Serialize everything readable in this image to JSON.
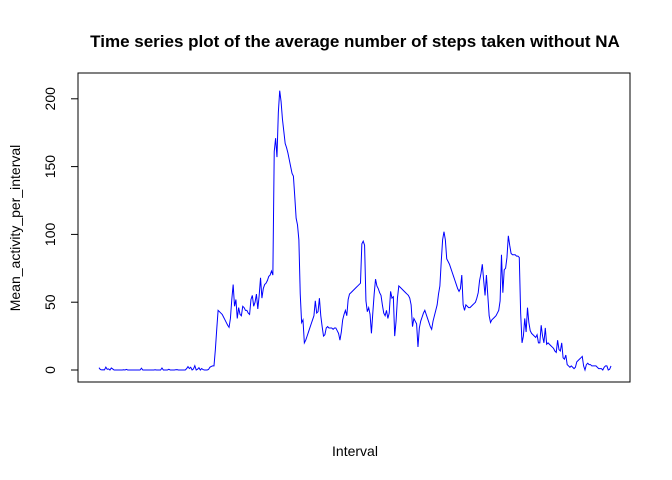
{
  "chart_data": {
    "type": "line",
    "title": "Time series plot of the average number of steps taken without NA",
    "xlabel": "Interval",
    "ylabel": "Mean_activity_per_interval",
    "ylim": [
      0,
      206
    ],
    "y_ticks": [
      "0",
      "50",
      "100",
      "150",
      "200"
    ],
    "x_ticks": [],
    "grid": false,
    "series_color": "#0000ff",
    "series": [
      {
        "values": [
          1.7,
          0.3,
          0.1,
          0.2,
          0.1,
          2.1,
          0.5,
          0.8,
          0.0,
          1.5,
          0.8,
          0.0,
          0.0,
          0.0,
          0.0,
          0.0,
          0.0,
          0.0,
          0.2,
          0.0,
          0.4,
          0.0,
          0.0,
          0.0,
          0.0,
          0.0,
          0.0,
          0.0,
          0.0,
          0.0,
          0.0,
          1.3,
          0.0,
          0.0,
          0.0,
          0.0,
          0.0,
          0.0,
          0.0,
          0.0,
          0.0,
          0.2,
          0.0,
          0.0,
          0.0,
          0.0,
          1.5,
          0.0,
          0.0,
          0.0,
          0.0,
          0.5,
          0.0,
          0.0,
          0.0,
          0.0,
          0.2,
          0.3,
          0.0,
          0.0,
          0.0,
          0.0,
          0.0,
          0.0,
          1.0,
          2.5,
          1.1,
          2.0,
          0.0,
          0.8,
          3.2,
          0.0,
          0.6,
          1.7,
          0.0,
          1.1,
          0.3,
          0.0,
          0.0,
          0.0,
          0.4,
          2.0,
          2.6,
          3.0,
          3.0,
          15.0,
          30.0,
          44.0,
          43.0,
          42.0,
          41.0,
          39.0,
          37.0,
          35.0,
          33.0,
          31.5,
          38.0,
          52.0,
          63.0,
          47.0,
          52.0,
          38.0,
          46.0,
          41.0,
          40.0,
          47.0,
          46.0,
          44.0,
          44.0,
          42.0,
          41.0,
          52.0,
          55.0,
          47.0,
          50.0,
          56.0,
          45.0,
          55.0,
          68.0,
          53.0,
          60.0,
          63.0,
          64.0,
          66.0,
          69.0,
          70.0,
          73.0,
          70.0,
          161.0,
          171.0,
          157.0,
          190.0,
          206.0,
          198.0,
          185.0,
          176.0,
          167.0,
          164.0,
          160.0,
          155.0,
          150.0,
          145.0,
          143.0,
          128.0,
          112.0,
          107.0,
          96.0,
          56.0,
          35.0,
          37.0,
          20.0,
          22.0,
          25.0,
          28.0,
          31.0,
          34.0,
          37.0,
          40.0,
          51.0,
          42.0,
          43.0,
          53.0,
          40.0,
          32.0,
          25.0,
          26.0,
          31.0,
          32.0,
          31.0,
          31.0,
          31.0,
          30.0,
          31.0,
          31.0,
          29.0,
          27.0,
          22.0,
          28.0,
          37.0,
          41.0,
          44.0,
          40.0,
          52.0,
          56.0,
          57.0,
          58.0,
          59.0,
          60.0,
          61.0,
          62.0,
          63.0,
          64.0,
          93.0,
          95.0,
          92.0,
          51.0,
          43.0,
          46.0,
          41.0,
          27.0,
          42.0,
          56.0,
          67.0,
          62.0,
          60.0,
          57.0,
          55.0,
          48.0,
          42.0,
          40.0,
          44.0,
          38.0,
          42.0,
          58.0,
          53.0,
          54.0,
          25.0,
          36.0,
          53.0,
          62.0,
          61.0,
          60.0,
          59.0,
          58.0,
          57.0,
          56.0,
          55.0,
          53.0,
          48.0,
          32.0,
          38.0,
          36.0,
          34.0,
          17.0,
          31.0,
          36.0,
          39.0,
          42.0,
          44.0,
          41.0,
          38.0,
          35.0,
          32.0,
          30.0,
          36.0,
          40.0,
          44.0,
          48.0,
          56.0,
          62.0,
          80.0,
          96.0,
          102.0,
          96.0,
          82.0,
          80.0,
          78.0,
          75.0,
          72.0,
          69.0,
          66.0,
          63.0,
          60.0,
          58.0,
          60.0,
          70.0,
          48.0,
          44.0,
          48.0,
          47.0,
          46.0,
          46.0,
          47.0,
          48.0,
          49.0,
          50.0,
          53.0,
          57.0,
          66.0,
          71.0,
          78.0,
          66.0,
          55.0,
          70.0,
          55.0,
          40.0,
          35.0,
          37.0,
          38.0,
          39.0,
          40.0,
          42.0,
          44.0,
          51.0,
          85.0,
          57.0,
          74.0,
          75.0,
          83.0,
          99.0,
          92.0,
          86.0,
          85.0,
          85.0,
          85.0,
          84.0,
          84.0,
          83.0,
          42.0,
          20.0,
          25.0,
          38.0,
          28.0,
          46.0,
          35.0,
          29.0,
          27.0,
          26.0,
          25.0,
          24.0,
          26.0,
          20.0,
          20.0,
          33.0,
          25.0,
          20.0,
          31.0,
          19.0,
          20.0,
          19.0,
          18.0,
          17.0,
          16.0,
          14.0,
          13.0,
          22.0,
          15.0,
          14.0,
          20.0,
          9.0,
          8.0,
          11.0,
          4.0,
          3.0,
          2.0,
          3.0,
          2.0,
          1.0,
          2.0,
          6.0,
          7.0,
          8.0,
          9.0,
          10.0,
          3.0,
          0.0,
          4.0,
          5.0,
          4.0,
          4.0,
          3.0,
          3.0,
          3.0,
          3.0,
          2.0,
          1.0,
          1.0,
          1.0,
          0.0,
          2.0,
          3.0,
          3.0,
          0.0,
          0.5,
          3.0
        ]
      }
    ]
  }
}
